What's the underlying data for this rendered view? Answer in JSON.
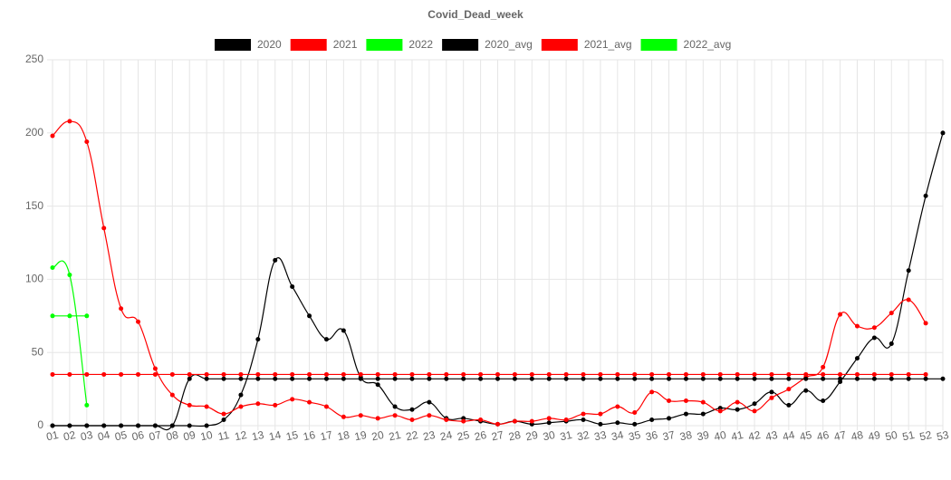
{
  "chart_data": {
    "type": "line",
    "title": "Covid_Dead_week",
    "categories": [
      "01",
      "02",
      "03",
      "04",
      "05",
      "06",
      "07",
      "08",
      "09",
      "10",
      "11",
      "12",
      "13",
      "14",
      "15",
      "16",
      "17",
      "18",
      "19",
      "20",
      "21",
      "22",
      "23",
      "24",
      "25",
      "26",
      "27",
      "28",
      "29",
      "30",
      "31",
      "32",
      "33",
      "34",
      "35",
      "36",
      "37",
      "38",
      "39",
      "40",
      "41",
      "42",
      "43",
      "44",
      "45",
      "46",
      "47",
      "48",
      "49",
      "50",
      "51",
      "52",
      "53"
    ],
    "series": [
      {
        "name": "2020",
        "color": "#000000",
        "values": [
          0,
          0,
          0,
          0,
          0,
          0,
          0,
          0,
          0,
          0,
          4,
          21,
          59,
          113,
          95,
          75,
          59,
          65,
          33,
          28,
          13,
          11,
          16,
          5,
          5,
          3,
          1,
          3,
          1,
          2,
          3,
          4,
          1,
          2,
          1,
          4,
          5,
          8,
          8,
          12,
          11,
          15,
          23,
          14,
          24,
          17,
          30,
          46,
          60,
          56,
          106,
          157,
          200
        ]
      },
      {
        "name": "2021",
        "color": "#ff0000",
        "values": [
          198,
          208,
          194,
          135,
          80,
          71,
          39,
          21,
          14,
          13,
          8,
          13,
          15,
          14,
          18,
          16,
          13,
          6,
          7,
          5,
          7,
          4,
          7,
          4,
          3,
          4,
          1,
          3,
          3,
          5,
          4,
          8,
          8,
          13,
          9,
          23,
          17,
          17,
          16,
          10,
          16,
          10,
          19,
          25,
          33,
          40,
          76,
          68,
          67,
          77,
          86,
          70,
          null
        ]
      },
      {
        "name": "2022",
        "color": "#00ff00",
        "values": [
          108,
          103,
          14,
          null,
          null,
          null,
          null,
          null,
          null,
          null,
          null,
          null,
          null,
          null,
          null,
          null,
          null,
          null,
          null,
          null,
          null,
          null,
          null,
          null,
          null,
          null,
          null,
          null,
          null,
          null,
          null,
          null,
          null,
          null,
          null,
          null,
          null,
          null,
          null,
          null,
          null,
          null,
          null,
          null,
          null,
          null,
          null,
          null,
          null,
          null,
          null,
          null,
          null
        ]
      },
      {
        "name": "2020_avg",
        "color": "#000000",
        "values": [
          0,
          0,
          0,
          0,
          0,
          0,
          0,
          0,
          32,
          32,
          32,
          32,
          32,
          32,
          32,
          32,
          32,
          32,
          32,
          32,
          32,
          32,
          32,
          32,
          32,
          32,
          32,
          32,
          32,
          32,
          32,
          32,
          32,
          32,
          32,
          32,
          32,
          32,
          32,
          32,
          32,
          32,
          32,
          32,
          32,
          32,
          32,
          32,
          32,
          32,
          32,
          32,
          32
        ]
      },
      {
        "name": "2021_avg",
        "color": "#ff0000",
        "values": [
          35,
          35,
          35,
          35,
          35,
          35,
          35,
          35,
          35,
          35,
          35,
          35,
          35,
          35,
          35,
          35,
          35,
          35,
          35,
          35,
          35,
          35,
          35,
          35,
          35,
          35,
          35,
          35,
          35,
          35,
          35,
          35,
          35,
          35,
          35,
          35,
          35,
          35,
          35,
          35,
          35,
          35,
          35,
          35,
          35,
          35,
          35,
          35,
          35,
          35,
          35,
          35,
          null
        ]
      },
      {
        "name": "2022_avg",
        "color": "#00ff00",
        "values": [
          75,
          75,
          75,
          null,
          null,
          null,
          null,
          null,
          null,
          null,
          null,
          null,
          null,
          null,
          null,
          null,
          null,
          null,
          null,
          null,
          null,
          null,
          null,
          null,
          null,
          null,
          null,
          null,
          null,
          null,
          null,
          null,
          null,
          null,
          null,
          null,
          null,
          null,
          null,
          null,
          null,
          null,
          null,
          null,
          null,
          null,
          null,
          null,
          null,
          null,
          null,
          null,
          null
        ]
      }
    ],
    "ylim": [
      0,
      250
    ],
    "yticks": [
      0,
      50,
      100,
      150,
      200,
      250
    ],
    "grid": true
  }
}
